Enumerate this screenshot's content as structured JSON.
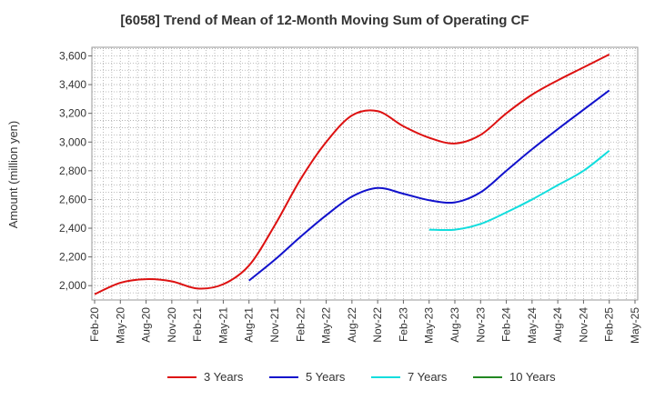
{
  "chart_data": {
    "type": "line",
    "title": "[6058]  Trend of Mean of 12-Month Moving Sum of Operating CF",
    "xlabel": "",
    "ylabel": "Amount (million yen)",
    "ylim": [
      1900,
      3660
    ],
    "yticks": [
      2000,
      2200,
      2400,
      2600,
      2800,
      3000,
      3200,
      3400,
      3600
    ],
    "ytick_labels": [
      "2,000",
      "2,200",
      "2,400",
      "2,600",
      "2,800",
      "3,000",
      "3,200",
      "3,400",
      "3,600"
    ],
    "x_tick_labels": [
      "Feb-20",
      "May-20",
      "Aug-20",
      "Nov-20",
      "Feb-21",
      "May-21",
      "Aug-21",
      "Nov-21",
      "Feb-22",
      "May-22",
      "Aug-22",
      "Nov-22",
      "Feb-23",
      "May-23",
      "Aug-23",
      "Nov-23",
      "Feb-24",
      "May-24",
      "Aug-24",
      "Nov-24",
      "Feb-25",
      "May-25"
    ],
    "grid": true,
    "legend_position": "bottom",
    "series": [
      {
        "name": "3 Years",
        "color": "#dd1111",
        "x": [
          "Feb-20",
          "May-20",
          "Aug-20",
          "Nov-20",
          "Feb-21",
          "May-21",
          "Aug-21",
          "Nov-21",
          "Feb-22",
          "May-22",
          "Aug-22",
          "Nov-22",
          "Feb-23",
          "May-23",
          "Aug-23",
          "Nov-23",
          "Feb-24",
          "May-24",
          "Aug-24",
          "Nov-24",
          "Feb-25"
        ],
        "values": [
          1940,
          2020,
          2045,
          2030,
          1980,
          2010,
          2140,
          2420,
          2740,
          3000,
          3185,
          3215,
          3110,
          3030,
          2990,
          3050,
          3200,
          3330,
          3430,
          3520,
          3610
        ]
      },
      {
        "name": "5 Years",
        "color": "#1111cc",
        "x": [
          "Aug-21",
          "Nov-21",
          "Feb-22",
          "May-22",
          "Aug-22",
          "Nov-22",
          "Feb-23",
          "May-23",
          "Aug-23",
          "Nov-23",
          "Feb-24",
          "May-24",
          "Aug-24",
          "Nov-24",
          "Feb-25"
        ],
        "values": [
          2035,
          2180,
          2340,
          2490,
          2620,
          2680,
          2640,
          2595,
          2580,
          2650,
          2800,
          2950,
          3090,
          3225,
          3360
        ]
      },
      {
        "name": "7 Years",
        "color": "#11dddd",
        "x": [
          "May-23",
          "Aug-23",
          "Nov-23",
          "Feb-24",
          "May-24",
          "Aug-24",
          "Nov-24",
          "Feb-25"
        ],
        "values": [
          2390,
          2390,
          2430,
          2510,
          2600,
          2700,
          2800,
          2940
        ]
      },
      {
        "name": "10 Years",
        "color": "#228822",
        "x": [],
        "values": []
      }
    ]
  }
}
